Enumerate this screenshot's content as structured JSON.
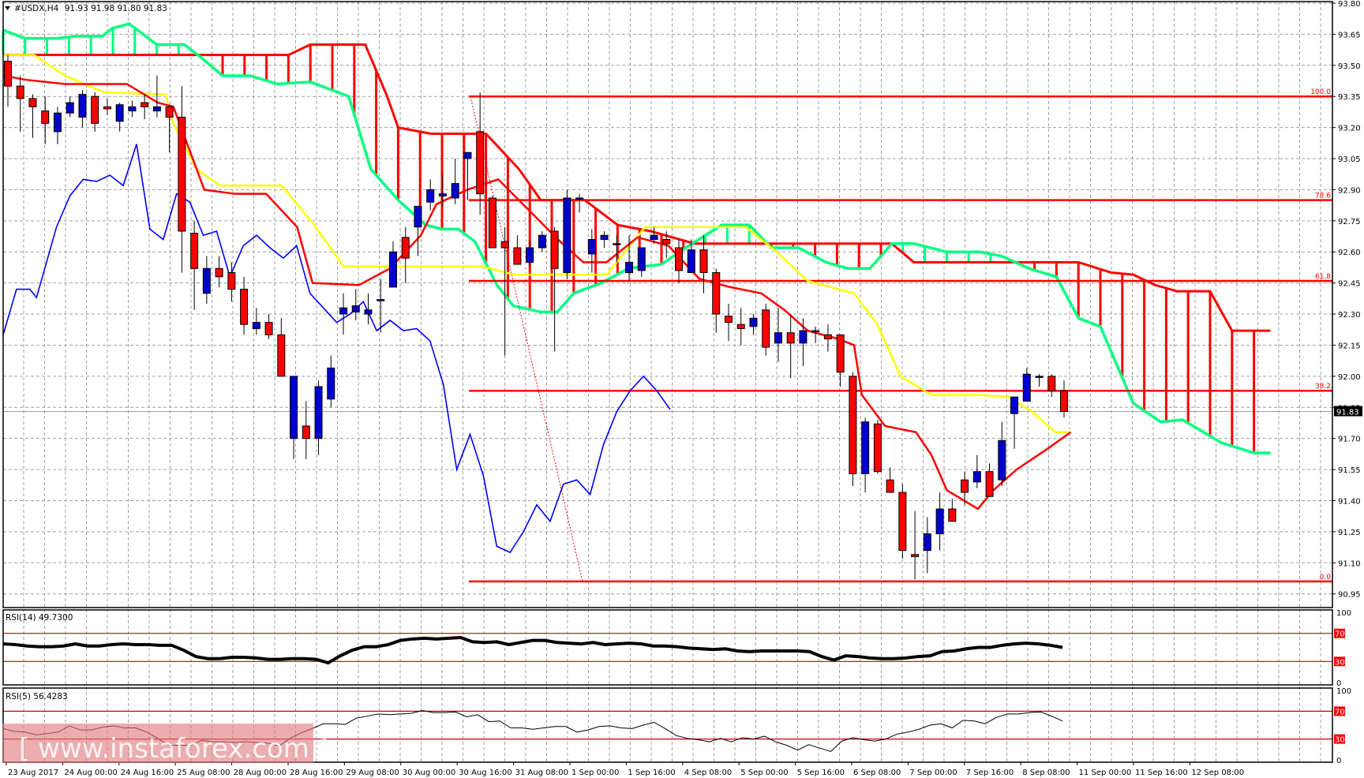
{
  "header": {
    "symbol": "#USDX,H4",
    "ohlc": "91.93 91.98 91.80 91.83",
    "menu_icon": "triangle-down-icon"
  },
  "colors": {
    "bull_candle": "#0000cc",
    "bear_candle": "#ff0000",
    "tenkan": "#ff0000",
    "kijun": "#ffff00",
    "chikou": "#0000ff",
    "senkou_a": "#00ff7f",
    "senkou_b": "#ff0000",
    "fib": "#ff0000",
    "grid": "#a0a0a0",
    "rsi14": "#000000",
    "rsi5": "#000000",
    "level_line": "#cc0000",
    "current_price_bg": "#000000",
    "watermark_bg": "#e07b7f"
  },
  "price_axis": {
    "labels": [
      "93.80",
      "93.65",
      "93.50",
      "93.35",
      "93.20",
      "93.05",
      "92.90",
      "92.75",
      "92.60",
      "92.45",
      "92.30",
      "92.15",
      "92.00",
      "91.85",
      "91.70",
      "91.55",
      "91.40",
      "91.25",
      "91.10",
      "90.95"
    ],
    "current_price": "91.83"
  },
  "time_axis": {
    "labels": [
      "23 Aug 2017",
      "24 Aug 00:00",
      "24 Aug 16:00",
      "25 Aug 08:00",
      "28 Aug 00:00",
      "28 Aug 16:00",
      "29 Aug 08:00",
      "30 Aug 00:00",
      "30 Aug 16:00",
      "31 Aug 08:00",
      "1 Sep 00:00",
      "1 Sep 16:00",
      "4 Sep 08:00",
      "5 Sep 00:00",
      "5 Sep 16:00",
      "6 Sep 08:00",
      "7 Sep 00:00",
      "7 Sep 16:00",
      "8 Sep 08:00",
      "11 Sep 00:00",
      "11 Sep 16:00",
      "12 Sep 08:00"
    ]
  },
  "fibonacci": {
    "levels": [
      {
        "label": "100.0",
        "price": 93.35
      },
      {
        "label": "78.6",
        "price": 92.85
      },
      {
        "label": "61.8",
        "price": 92.46
      },
      {
        "label": "38.2",
        "price": 91.93
      },
      {
        "label": "0.0",
        "price": 91.01
      }
    ]
  },
  "rsi14": {
    "label": "RSI(14) 49.7300",
    "axis": [
      "100",
      "70",
      "30",
      "0"
    ]
  },
  "rsi5": {
    "label": "RSI(5) 56.4283",
    "axis": [
      "100",
      "70",
      "30",
      "0"
    ]
  },
  "watermark": {
    "text": "[ www.instaforex.com ]"
  },
  "chart_data": [
    {
      "type": "candlestick",
      "title": "#USDX,H4 91.93 91.98 91.80 91.83",
      "xlabel": "",
      "ylabel": "",
      "ylim": [
        90.95,
        93.8
      ],
      "grid": true,
      "indicators": [
        "Ichimoku Kinko Hyo",
        "Fibonacci retracement (100.0, 78.6, 61.8, 38.2, 0.0)"
      ],
      "x_tick_labels": [
        "23 Aug 2017",
        "24 Aug 00:00",
        "24 Aug 16:00",
        "25 Aug 08:00",
        "28 Aug 00:00",
        "28 Aug 16:00",
        "29 Aug 08:00",
        "30 Aug 00:00",
        "30 Aug 16:00",
        "31 Aug 08:00",
        "1 Sep 00:00",
        "1 Sep 16:00",
        "4 Sep 08:00",
        "5 Sep 00:00",
        "5 Sep 16:00",
        "6 Sep 08:00",
        "7 Sep 00:00",
        "7 Sep 16:00",
        "8 Sep 08:00",
        "11 Sep 00:00",
        "11 Sep 16:00",
        "12 Sep 08:00"
      ],
      "ohlc": [
        [
          93.52,
          93.55,
          93.3,
          93.4
        ],
        [
          93.4,
          93.45,
          93.18,
          93.34
        ],
        [
          93.34,
          93.36,
          93.15,
          93.3
        ],
        [
          93.28,
          93.35,
          93.12,
          93.22
        ],
        [
          93.18,
          93.3,
          93.12,
          93.27
        ],
        [
          93.27,
          93.35,
          93.25,
          93.32
        ],
        [
          93.25,
          93.38,
          93.2,
          93.36
        ],
        [
          93.35,
          93.37,
          93.18,
          93.22
        ],
        [
          93.3,
          93.34,
          93.26,
          93.29
        ],
        [
          93.23,
          93.32,
          93.18,
          93.31
        ],
        [
          93.28,
          93.33,
          93.25,
          93.3
        ],
        [
          93.32,
          93.36,
          93.24,
          93.3
        ],
        [
          93.28,
          93.45,
          93.25,
          93.3
        ],
        [
          93.3,
          93.31,
          93.08,
          93.25
        ],
        [
          93.25,
          93.4,
          92.5,
          92.7
        ],
        [
          92.69,
          92.75,
          92.32,
          92.52
        ],
        [
          92.4,
          92.58,
          92.35,
          92.52
        ],
        [
          92.52,
          92.58,
          92.43,
          92.48
        ],
        [
          92.5,
          92.55,
          92.36,
          92.42
        ],
        [
          92.42,
          92.48,
          92.2,
          92.25
        ],
        [
          92.23,
          92.33,
          92.2,
          92.26
        ],
        [
          92.26,
          92.3,
          92.18,
          92.2
        ],
        [
          92.2,
          92.28,
          92.05,
          92.0
        ],
        [
          91.7,
          91.98,
          91.6,
          92.0
        ],
        [
          91.76,
          91.88,
          91.6,
          91.7
        ],
        [
          91.7,
          91.98,
          91.62,
          91.95
        ],
        [
          91.89,
          92.1,
          91.85,
          92.04
        ],
        [
          92.3,
          92.4,
          92.2,
          92.33
        ],
        [
          92.31,
          92.42,
          92.27,
          92.34
        ],
        [
          92.3,
          92.4,
          92.25,
          92.32
        ],
        [
          92.37,
          92.47,
          92.21,
          92.37
        ],
        [
          92.43,
          92.65,
          92.44,
          92.6
        ],
        [
          92.67,
          92.72,
          92.45,
          92.57
        ],
        [
          92.72,
          92.78,
          92.58,
          92.82
        ],
        [
          92.84,
          92.95,
          92.8,
          92.9
        ],
        [
          92.87,
          92.97,
          92.82,
          92.88
        ],
        [
          92.86,
          93.05,
          92.83,
          92.93
        ],
        [
          93.05,
          93.07,
          92.85,
          93.08
        ],
        [
          93.18,
          93.37,
          92.78,
          92.88
        ],
        [
          92.86,
          92.87,
          92.63,
          92.62
        ],
        [
          92.65,
          92.72,
          92.1,
          92.62
        ],
        [
          92.62,
          92.68,
          92.59,
          92.54
        ],
        [
          92.55,
          92.65,
          92.53,
          92.62
        ],
        [
          92.62,
          92.7,
          92.6,
          92.68
        ],
        [
          92.7,
          92.72,
          92.12,
          92.52
        ],
        [
          92.5,
          92.9,
          92.47,
          92.86
        ],
        [
          92.86,
          92.88,
          92.79,
          92.86
        ],
        [
          92.59,
          92.71,
          92.5,
          92.66
        ],
        [
          92.66,
          92.7,
          92.62,
          92.68
        ],
        [
          92.64,
          92.68,
          92.55,
          92.64
        ],
        [
          92.5,
          92.68,
          92.46,
          92.55
        ],
        [
          92.51,
          92.62,
          92.48,
          92.62
        ],
        [
          92.66,
          92.72,
          92.64,
          92.68
        ],
        [
          92.66,
          92.7,
          92.57,
          92.64
        ],
        [
          92.62,
          92.66,
          92.45,
          92.51
        ],
        [
          92.5,
          92.66,
          92.5,
          92.61
        ],
        [
          92.61,
          92.68,
          92.4,
          92.5
        ],
        [
          92.5,
          92.52,
          92.21,
          92.3
        ],
        [
          92.29,
          92.35,
          92.17,
          92.26
        ],
        [
          92.25,
          92.33,
          92.15,
          92.23
        ],
        [
          92.24,
          92.3,
          92.2,
          92.28
        ],
        [
          92.32,
          92.35,
          92.1,
          92.14
        ],
        [
          92.16,
          92.33,
          92.07,
          92.21
        ],
        [
          92.21,
          92.3,
          91.99,
          92.16
        ],
        [
          92.16,
          92.28,
          92.05,
          92.22
        ],
        [
          92.22,
          92.24,
          92.16,
          92.22
        ],
        [
          92.2,
          92.25,
          92.12,
          92.18
        ],
        [
          92.2,
          92.2,
          91.95,
          92.02
        ],
        [
          92.0,
          92.02,
          91.47,
          91.53
        ],
        [
          91.53,
          91.8,
          91.44,
          91.78
        ],
        [
          91.77,
          91.79,
          91.53,
          91.54
        ],
        [
          91.5,
          91.56,
          91.44,
          91.44
        ],
        [
          91.44,
          91.48,
          91.12,
          91.16
        ],
        [
          91.14,
          91.35,
          91.02,
          91.13
        ],
        [
          91.16,
          91.32,
          91.05,
          91.24
        ],
        [
          91.24,
          91.44,
          91.16,
          91.36
        ],
        [
          91.36,
          91.41,
          91.3,
          91.3
        ],
        [
          91.5,
          91.54,
          91.38,
          91.44
        ],
        [
          91.49,
          91.62,
          91.46,
          91.54
        ],
        [
          91.54,
          91.58,
          91.44,
          91.42
        ],
        [
          91.5,
          91.78,
          91.47,
          91.69
        ],
        [
          91.82,
          91.88,
          91.65,
          91.9
        ],
        [
          91.88,
          92.04,
          91.92,
          92.01
        ],
        [
          92.0,
          92.01,
          91.95,
          92.0
        ],
        [
          92.0,
          92.01,
          91.9,
          91.93
        ],
        [
          91.93,
          91.98,
          91.8,
          91.83
        ]
      ],
      "ichimoku": {
        "tenkan_note": "red line",
        "kijun_note": "yellow line",
        "chikou_note": "blue line",
        "cloud_span_a_color": "spring green",
        "cloud_span_b_color": "red"
      }
    },
    {
      "type": "line",
      "title": "RSI(14) 49.7300",
      "ylim": [
        0,
        100
      ],
      "levels": [
        70,
        30
      ],
      "values": [
        55,
        54,
        52,
        51,
        51,
        52,
        55,
        52,
        52,
        54,
        55,
        54,
        54,
        53,
        53,
        46,
        37,
        34,
        34,
        36,
        36,
        35,
        33,
        33,
        34,
        34,
        33,
        28,
        38,
        46,
        51,
        51,
        54,
        60,
        62,
        63,
        62,
        63,
        64,
        58,
        57,
        58,
        54,
        57,
        60,
        60,
        57,
        56,
        55,
        57,
        54,
        55,
        56,
        55,
        52,
        52,
        51,
        49,
        48,
        47,
        48,
        45,
        44,
        45,
        45,
        45,
        45,
        44,
        37,
        32,
        38,
        37,
        35,
        34,
        34,
        35,
        37,
        38,
        44,
        45,
        48,
        50,
        50,
        53,
        55,
        56,
        55,
        53,
        50
      ]
    },
    {
      "type": "line",
      "title": "RSI(5) 56.4283",
      "ylim": [
        0,
        100
      ],
      "levels": [
        70,
        30
      ],
      "values": [
        45,
        41,
        40,
        36,
        38,
        40,
        49,
        43,
        43,
        47,
        49,
        46,
        46,
        40,
        31,
        21,
        21,
        21,
        28,
        26,
        26,
        25,
        26,
        25,
        24,
        20,
        31,
        39,
        45,
        52,
        52,
        51,
        60,
        63,
        66,
        65,
        66,
        67,
        71,
        68,
        68,
        69,
        62,
        65,
        55,
        56,
        46,
        46,
        44,
        46,
        48,
        48,
        40,
        43,
        48,
        49,
        46,
        45,
        50,
        54,
        45,
        35,
        31,
        29,
        26,
        31,
        26,
        32,
        30,
        34,
        26,
        21,
        14,
        22,
        17,
        12,
        27,
        32,
        29,
        27,
        30,
        37,
        40,
        44,
        50,
        52,
        46,
        57,
        56,
        52,
        61,
        66,
        66,
        68,
        69,
        63,
        56
      ]
    }
  ]
}
